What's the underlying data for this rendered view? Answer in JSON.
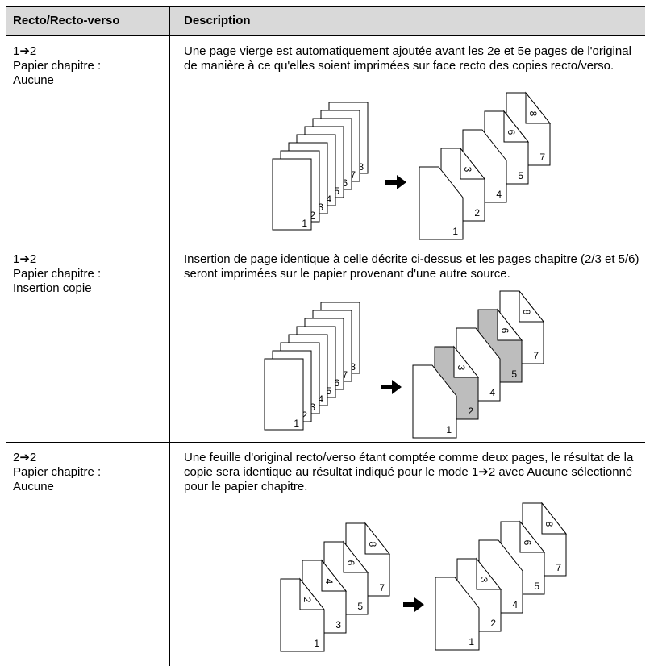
{
  "table": {
    "header": [
      "Recto/Recto-verso",
      "Description"
    ],
    "rows": [
      {
        "mode": [
          "1➔2",
          "Papier chapitre :",
          "Aucune"
        ],
        "description": "Une page vierge est automatiquement ajoutée avant les 2e et 5e pages de l'original de manière à ce qu'elles soient imprimées sur face recto des copies recto/verso.",
        "original_pages": [
          "1",
          "2",
          "3",
          "4",
          "5",
          "6",
          "7",
          "8"
        ],
        "result_sheets": [
          {
            "front": "1"
          },
          {
            "front": "2",
            "fold": "3"
          },
          {
            "front": "4"
          },
          {
            "front": "5",
            "fold": "6"
          },
          {
            "front": "7",
            "fold": "8"
          }
        ]
      },
      {
        "mode": [
          "1➔2",
          "Papier chapitre :",
          "Insertion copie"
        ],
        "description": "Insertion de page identique à celle décrite ci-dessus et les pages chapitre (2/3 et 5/6) seront imprimées sur le papier provenant d'une autre source.",
        "original_pages": [
          "1",
          "2",
          "3",
          "4",
          "5",
          "6",
          "7",
          "8"
        ],
        "result_sheets": [
          {
            "front": "1"
          },
          {
            "front": "2",
            "fold": "3",
            "shaded": true
          },
          {
            "front": "4"
          },
          {
            "front": "5",
            "fold": "6",
            "shaded": true
          },
          {
            "front": "7",
            "fold": "8"
          }
        ]
      },
      {
        "mode": [
          "2➔2",
          "Papier chapitre :",
          "Aucune"
        ],
        "description": "Une feuille d'original recto/verso étant comptée comme deux pages, le résultat de la copie sera identique au résultat indiqué pour le mode 1➔2 avec Aucune sélectionné pour le papier chapitre.",
        "original_sheets": [
          {
            "front": "1",
            "fold": "2"
          },
          {
            "front": "3",
            "fold": "4"
          },
          {
            "front": "5",
            "fold": "6"
          },
          {
            "front": "7",
            "fold": "8"
          }
        ],
        "result_sheets": [
          {
            "front": "1"
          },
          {
            "front": "2",
            "fold": "3"
          },
          {
            "front": "4"
          },
          {
            "front": "5",
            "fold": "6"
          },
          {
            "front": "7",
            "fold": "8"
          }
        ]
      }
    ]
  }
}
